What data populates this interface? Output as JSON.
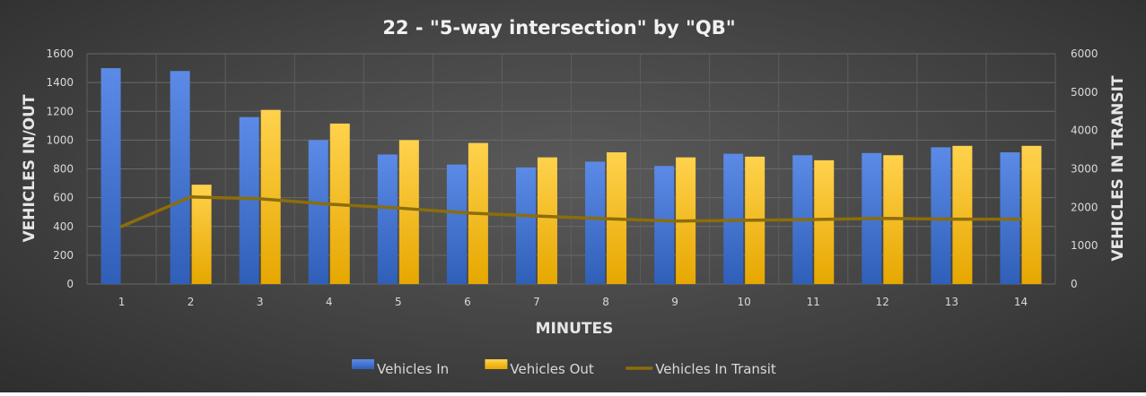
{
  "chart_data": {
    "type": "bar",
    "title": "22 - \"5-way intersection\" by \"QB\"",
    "xlabel": "MINUTES",
    "ylabel": "VEHICLES IN/OUT",
    "y2label": "VEHICLES IN TRANSIT",
    "categories": [
      "1",
      "2",
      "3",
      "4",
      "5",
      "6",
      "7",
      "8",
      "9",
      "10",
      "11",
      "12",
      "13",
      "14"
    ],
    "ylim": [
      0,
      1600
    ],
    "yticks": [
      0,
      200,
      400,
      600,
      800,
      1000,
      1200,
      1400,
      1600
    ],
    "y2lim": [
      0,
      6000
    ],
    "y2ticks": [
      0,
      1000,
      2000,
      3000,
      4000,
      5000,
      6000
    ],
    "grid": true,
    "legend_position": "bottom",
    "series": [
      {
        "name": "Vehicles In",
        "type": "bar",
        "axis": "left",
        "color": "#4f7fd9",
        "values": [
          1500,
          1480,
          1160,
          1000,
          900,
          830,
          810,
          850,
          820,
          905,
          895,
          910,
          950,
          915
        ]
      },
      {
        "name": "Vehicles Out",
        "type": "bar",
        "axis": "left",
        "color": "#ffc000",
        "values": [
          0,
          690,
          1210,
          1115,
          1000,
          980,
          880,
          915,
          880,
          885,
          860,
          895,
          960,
          960
        ]
      },
      {
        "name": "Vehicles In Transit",
        "type": "line",
        "axis": "right",
        "color": "#8c6d0b",
        "values": [
          1500,
          2270,
          2220,
          2080,
          1980,
          1850,
          1770,
          1700,
          1640,
          1660,
          1680,
          1710,
          1690,
          1690
        ]
      }
    ]
  }
}
